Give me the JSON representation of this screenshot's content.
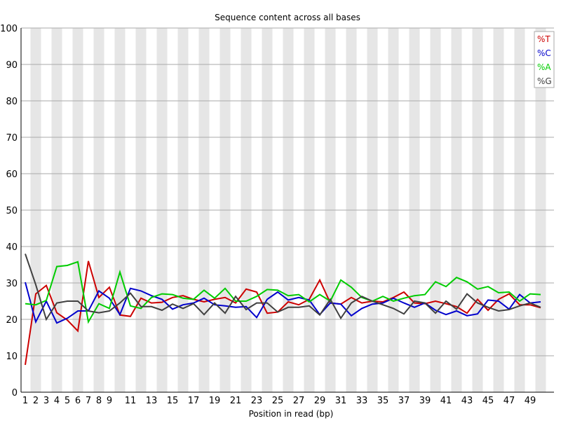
{
  "chart_data": {
    "type": "line",
    "title": "Sequence content across all bases",
    "xlabel": "Position in read (bp)",
    "ylabel": "",
    "ylim": [
      0,
      100
    ],
    "yticks": [
      0,
      10,
      20,
      30,
      40,
      50,
      60,
      70,
      80,
      90,
      100
    ],
    "x_tick_labels": [
      "1",
      "2",
      "3",
      "4",
      "5",
      "6",
      "7",
      "8",
      "9",
      "11",
      "13",
      "15",
      "17",
      "19",
      "21",
      "23",
      "25",
      "27",
      "29",
      "31",
      "33",
      "35",
      "37",
      "39",
      "41",
      "43",
      "45",
      "47",
      "49"
    ],
    "x_positions": [
      1,
      2,
      3,
      4,
      5,
      6,
      7,
      8,
      9,
      10,
      11,
      12,
      13,
      14,
      15,
      16,
      17,
      18,
      19,
      20,
      21,
      22,
      23,
      24,
      25,
      26,
      27,
      28,
      29,
      30,
      31,
      32,
      33,
      34,
      35,
      36,
      37,
      38,
      39,
      40,
      41,
      42,
      43,
      44,
      45,
      46,
      47,
      48,
      49,
      50
    ],
    "legend_position": "top-right",
    "series": [
      {
        "name": "%T",
        "color": "#cc0000",
        "values": [
          7.5,
          27.0,
          29.3,
          21.8,
          19.8,
          16.8,
          36.0,
          26.0,
          28.8,
          21.2,
          20.8,
          25.8,
          24.5,
          24.7,
          26.0,
          26.5,
          25.5,
          24.8,
          25.5,
          26.0,
          24.5,
          28.3,
          27.5,
          21.7,
          22.0,
          24.8,
          24.0,
          25.5,
          30.8,
          24.5,
          24.2,
          26.0,
          24.5,
          25.0,
          24.8,
          26.0,
          27.5,
          24.5,
          24.3,
          25.0,
          24.3,
          23.5,
          21.7,
          25.5,
          22.5,
          25.5,
          27.0,
          24.0,
          24.0,
          23.2
        ]
      },
      {
        "name": "%C",
        "color": "#0000cc",
        "values": [
          30.2,
          19.3,
          25.0,
          19.0,
          20.3,
          22.3,
          22.3,
          27.8,
          25.8,
          21.3,
          28.5,
          27.8,
          26.5,
          25.5,
          22.8,
          24.0,
          24.5,
          25.8,
          24.0,
          23.7,
          23.3,
          23.5,
          20.5,
          25.5,
          27.5,
          25.3,
          26.0,
          25.3,
          21.3,
          24.5,
          24.2,
          21.0,
          23.0,
          24.2,
          24.5,
          25.8,
          24.5,
          23.3,
          24.5,
          22.5,
          21.3,
          22.3,
          21.0,
          21.5,
          25.3,
          25.0,
          22.8,
          26.8,
          24.5,
          24.8
        ]
      },
      {
        "name": "%A",
        "color": "#00cc00",
        "values": [
          24.3,
          24.0,
          25.2,
          34.5,
          34.8,
          35.8,
          19.3,
          24.3,
          23.0,
          33.0,
          23.7,
          23.0,
          26.0,
          27.0,
          26.8,
          25.8,
          25.5,
          28.0,
          25.8,
          28.5,
          25.0,
          25.0,
          26.3,
          28.2,
          28.0,
          26.5,
          26.8,
          24.8,
          26.8,
          25.0,
          30.8,
          28.8,
          26.0,
          25.0,
          26.3,
          25.0,
          25.8,
          26.5,
          26.8,
          30.3,
          29.0,
          31.5,
          30.3,
          28.3,
          29.0,
          27.3,
          27.5,
          25.0,
          27.0,
          26.8
        ]
      },
      {
        "name": "%G",
        "color": "#404040",
        "values": [
          38.0,
          29.5,
          20.0,
          24.5,
          25.0,
          25.0,
          22.3,
          21.8,
          22.3,
          24.5,
          27.2,
          23.5,
          23.5,
          22.5,
          24.2,
          23.0,
          24.3,
          21.3,
          24.5,
          21.7,
          26.3,
          22.7,
          24.5,
          24.5,
          22.0,
          23.3,
          23.3,
          23.7,
          21.2,
          25.5,
          20.3,
          24.5,
          26.3,
          25.0,
          24.0,
          23.0,
          21.5,
          25.0,
          24.5,
          21.7,
          25.0,
          22.8,
          27.0,
          24.5,
          23.3,
          22.3,
          22.7,
          23.7,
          24.5,
          23.3
        ]
      }
    ]
  }
}
